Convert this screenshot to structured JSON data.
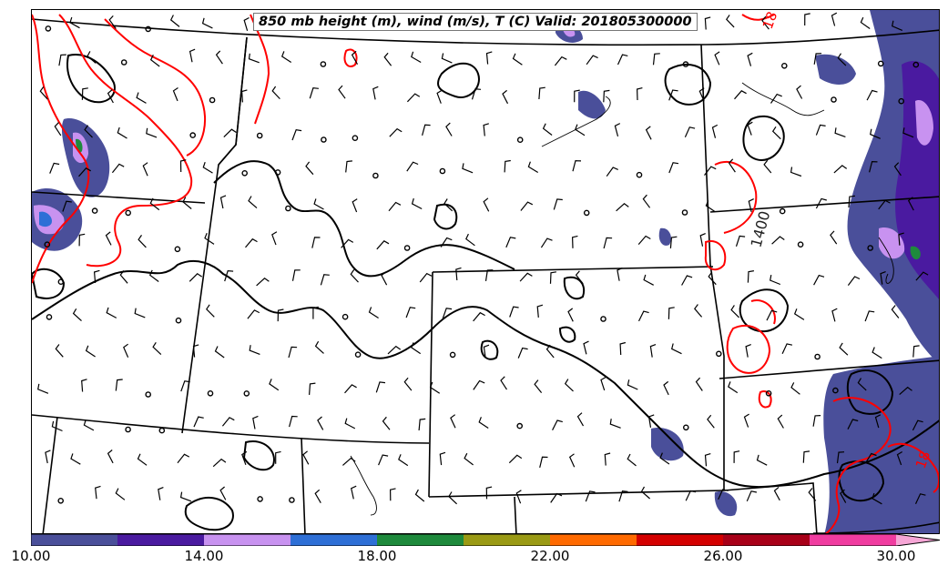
{
  "title": "850 mb height (m), wind (m/s), T (C) Valid: 201805300000",
  "contour_labels": {
    "height_label": "1400",
    "temp_label_top": "18",
    "temp_label_bottom": "18"
  },
  "colorbar": {
    "levels": [
      10,
      12,
      14,
      16,
      18,
      20,
      22,
      24,
      26,
      28,
      30
    ],
    "colors": [
      "#4a4f9a",
      "#4a1aa0",
      "#c892f0",
      "#2e6fd6",
      "#1e8a3c",
      "#9a9a14",
      "#ff6a00",
      "#d40000",
      "#a80018",
      "#f03ca0",
      "#f6a6d6"
    ],
    "tick_labels": [
      "10.00",
      "14.00",
      "18.00",
      "22.00",
      "26.00",
      "30.00"
    ]
  },
  "colors": {
    "height_contour": "#000000",
    "temperature_contour": "#ff0000",
    "boundaries": "#000000"
  }
}
